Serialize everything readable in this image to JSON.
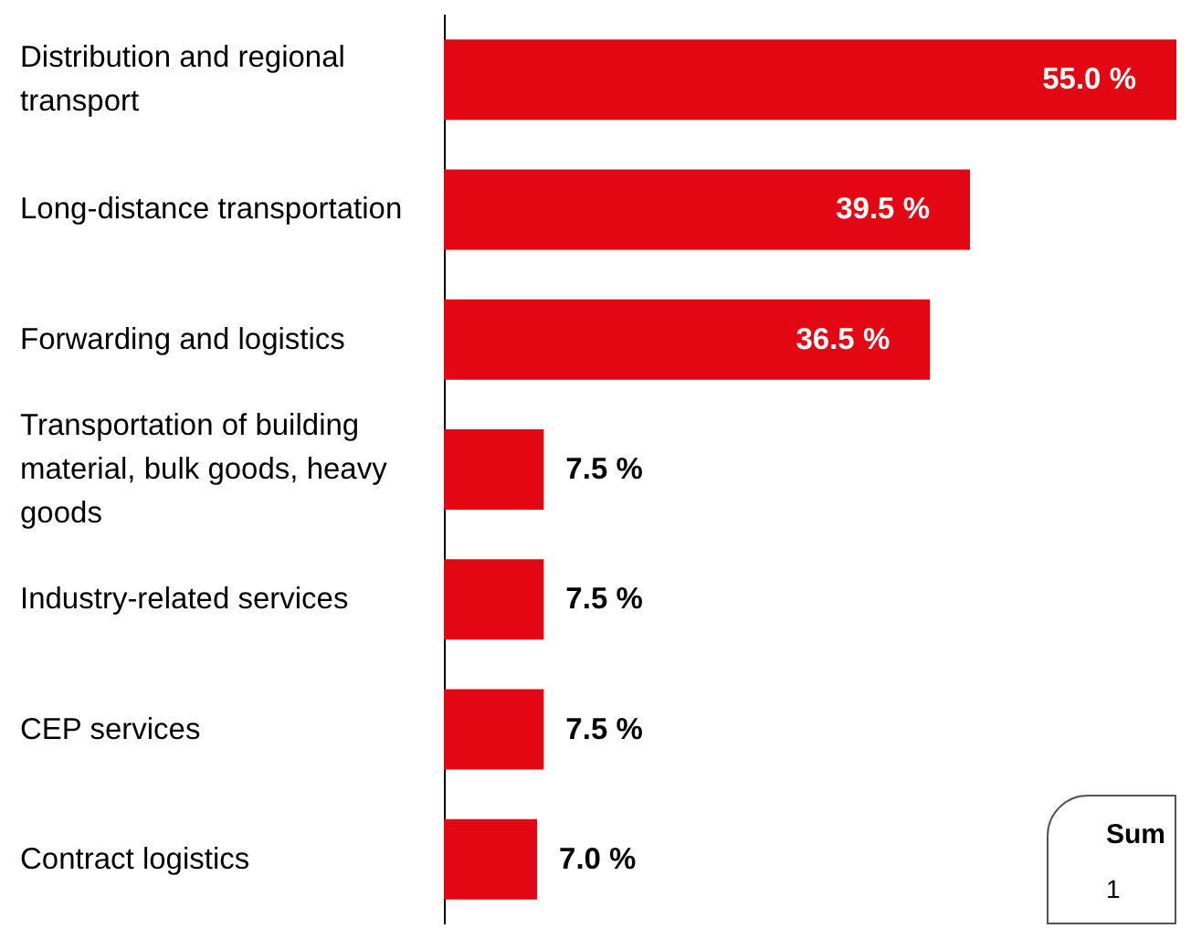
{
  "chart_data": {
    "type": "bar",
    "orientation": "horizontal",
    "categories": [
      "Distribution and regional transport",
      "Long-distance transportation",
      "Forwarding and logistics",
      "Transportation of building material, bulk goods, heavy goods",
      "Industry-related services",
      "CEP services",
      "Contract logistics"
    ],
    "values": [
      55.0,
      39.5,
      36.5,
      7.5,
      7.5,
      7.5,
      7.0
    ],
    "value_labels": [
      "55.0 %",
      "39.5 %",
      "36.5 %",
      "7.5 %",
      "7.5 %",
      "7.5 %",
      "7.0 %"
    ],
    "color": "#e30613",
    "xlim": [
      0,
      55
    ],
    "tick_labels": "y",
    "annotations": [
      "Sum",
      "1"
    ]
  }
}
